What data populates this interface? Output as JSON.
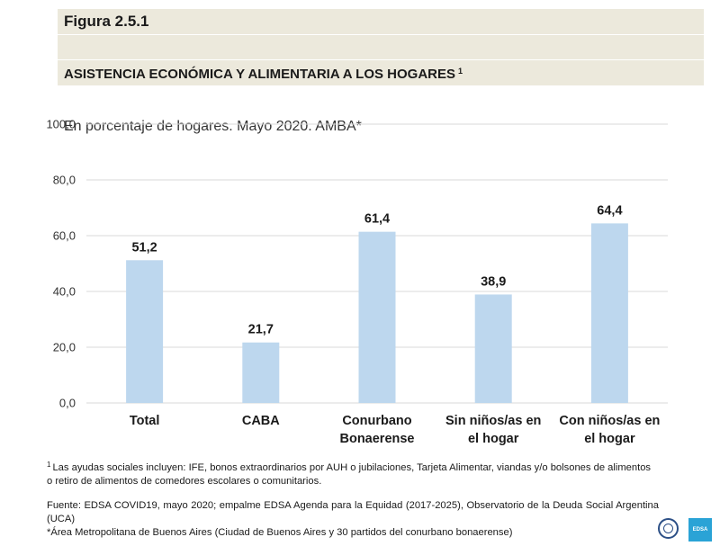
{
  "header": {
    "figure_label": "Figura 2.5.1",
    "title": "ASISTENCIA ECONÓMICA Y ALIMENTARIA A LOS HOGARES",
    "title_note": "1",
    "subtitle": "En porcentaje de hogares. Mayo 2020. AMBA*"
  },
  "chart_data": {
    "type": "bar",
    "title": "ASISTENCIA ECONÓMICA Y ALIMENTARIA A LOS HOGARES",
    "xlabel": "",
    "ylabel": "",
    "ylim": [
      0,
      100
    ],
    "yticks": [
      "0,0",
      "20,0",
      "40,0",
      "60,0",
      "80,0",
      "100,0"
    ],
    "ytick_values": [
      0,
      20,
      40,
      60,
      80,
      100
    ],
    "grid": true,
    "categories": [
      [
        "Total"
      ],
      [
        "CABA"
      ],
      [
        "Conurbano",
        "Bonaerense"
      ],
      [
        "Sin niños/as en",
        "el hogar"
      ],
      [
        "Con niños/as en",
        "el hogar"
      ]
    ],
    "values": [
      51.2,
      21.7,
      61.4,
      38.9,
      64.4
    ],
    "value_labels": [
      "51,2",
      "21,7",
      "61,4",
      "38,9",
      "64,4"
    ],
    "bar_color": "#bdd7ee",
    "grid_color": "#d9d9d9"
  },
  "notes": {
    "note1_mark": "1",
    "note1": "Las ayudas sociales incluyen: IFE, bonos extraordinarios por AUH o jubilaciones, Tarjeta Alimentar, viandas y/o bolsones de alimentos o retiro de alimentos de comedores escolares o comunitarios.",
    "source": "Fuente: EDSA COVID19, mayo 2020; empalme EDSA Agenda para la Equidad (2017-2025), Observatorio de la Deuda Social Argentina (UCA)",
    "amba": "*Área Metropolitana de Buenos Aires (Ciudad de Buenos Aires y 30 partidos del conurbano bonaerense)"
  },
  "logos": {
    "edsa_text": "EDSA"
  }
}
